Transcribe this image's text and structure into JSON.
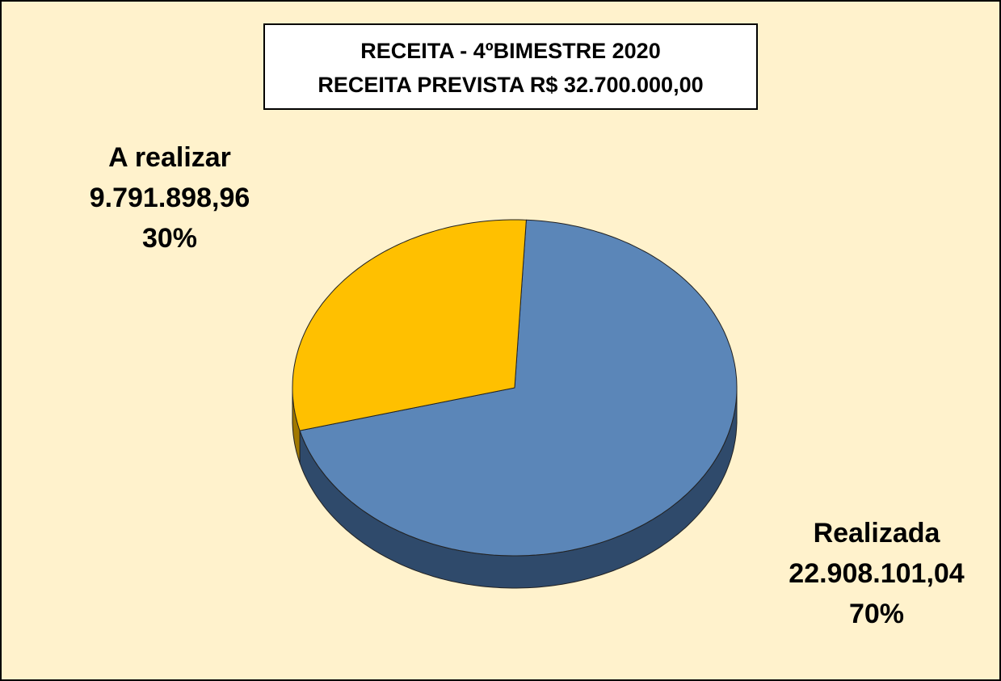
{
  "chart_data": {
    "type": "pie3d",
    "title": "RECEITA - 4ºBIMESTRE 2020",
    "subtitle": "RECEITA PREVISTA R$ 32.700.000,00",
    "categories": [
      "Realizada",
      "A realizar"
    ],
    "values": [
      22908101.04,
      9791898.96
    ],
    "value_labels": [
      "22.908.101,04",
      "9.791.898,96"
    ],
    "percents": [
      70,
      30
    ],
    "percent_labels": [
      "70%",
      "30%"
    ],
    "colors": [
      "#5b86b8",
      "#ffc000"
    ],
    "side_colors": [
      "#2f4a6b",
      "#a07800"
    ]
  }
}
